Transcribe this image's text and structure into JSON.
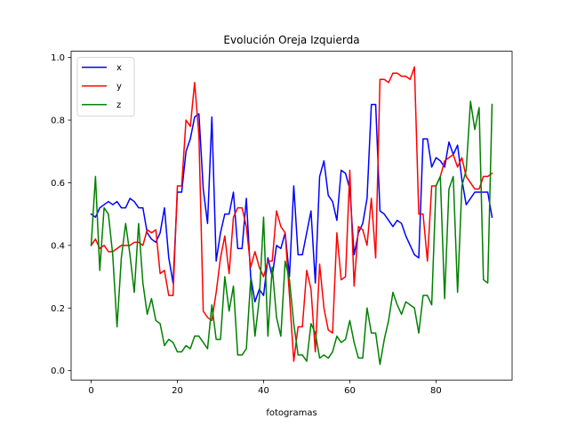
{
  "chart_data": {
    "type": "line",
    "title": "Evolución Oreja Izquierda",
    "xlabel": "fotogramas",
    "ylabel": "",
    "xlim": [
      -4.65,
      97.65
    ],
    "ylim": [
      -0.03,
      1.02
    ],
    "xticks": [
      0,
      20,
      40,
      60,
      80
    ],
    "yticks": [
      0.0,
      0.2,
      0.4,
      0.6,
      0.8,
      1.0
    ],
    "xtick_labels": [
      "0",
      "20",
      "40",
      "60",
      "80"
    ],
    "ytick_labels": [
      "0.0",
      "0.2",
      "0.4",
      "0.6",
      "0.8",
      "1.0"
    ],
    "grid": false,
    "legend_position": "top-left",
    "x": [
      0,
      1,
      2,
      3,
      4,
      5,
      6,
      7,
      8,
      9,
      10,
      11,
      12,
      13,
      14,
      15,
      16,
      17,
      18,
      19,
      20,
      21,
      22,
      23,
      24,
      25,
      26,
      27,
      28,
      29,
      30,
      31,
      32,
      33,
      34,
      35,
      36,
      37,
      38,
      39,
      40,
      41,
      42,
      43,
      44,
      45,
      46,
      47,
      48,
      49,
      50,
      51,
      52,
      53,
      54,
      55,
      56,
      57,
      58,
      59,
      60,
      61,
      62,
      63,
      64,
      65,
      66,
      67,
      68,
      69,
      70,
      71,
      72,
      73,
      74,
      75,
      76,
      77,
      78,
      79,
      80,
      81,
      82,
      83,
      84,
      85,
      86,
      87,
      88,
      89,
      90,
      91,
      92,
      93
    ],
    "series": [
      {
        "name": "x",
        "color": "#0000ff",
        "values": [
          0.5,
          0.49,
          0.52,
          0.53,
          0.54,
          0.53,
          0.54,
          0.52,
          0.52,
          0.55,
          0.54,
          0.52,
          0.52,
          0.44,
          0.42,
          0.41,
          0.44,
          0.52,
          0.36,
          0.28,
          0.57,
          0.57,
          0.7,
          0.74,
          0.81,
          0.82,
          0.58,
          0.47,
          0.81,
          0.35,
          0.44,
          0.5,
          0.5,
          0.57,
          0.39,
          0.39,
          0.55,
          0.3,
          0.22,
          0.26,
          0.24,
          0.36,
          0.3,
          0.4,
          0.39,
          0.44,
          0.3,
          0.59,
          0.37,
          0.37,
          0.44,
          0.51,
          0.28,
          0.62,
          0.67,
          0.56,
          0.54,
          0.48,
          0.64,
          0.63,
          0.58,
          0.37,
          0.44,
          0.47,
          0.55,
          0.85,
          0.85,
          0.51,
          0.5,
          0.48,
          0.46,
          0.48,
          0.47,
          0.43,
          0.4,
          0.37,
          0.36,
          0.74,
          0.74,
          0.65,
          0.68,
          0.67,
          0.65,
          0.73,
          0.69,
          0.72,
          0.61,
          0.53,
          0.55,
          0.57,
          0.57,
          0.57,
          0.57,
          0.49
        ]
      },
      {
        "name": "y",
        "color": "#ff0000",
        "values": [
          0.4,
          0.42,
          0.39,
          0.4,
          0.38,
          0.38,
          0.39,
          0.4,
          0.4,
          0.4,
          0.41,
          0.41,
          0.4,
          0.45,
          0.44,
          0.45,
          0.31,
          0.32,
          0.24,
          0.24,
          0.59,
          0.59,
          0.8,
          0.78,
          0.92,
          0.75,
          0.19,
          0.17,
          0.16,
          0.25,
          0.36,
          0.43,
          0.31,
          0.49,
          0.52,
          0.52,
          0.46,
          0.33,
          0.38,
          0.33,
          0.3,
          0.35,
          0.35,
          0.51,
          0.46,
          0.44,
          0.24,
          0.03,
          0.14,
          0.14,
          0.32,
          0.26,
          0.06,
          0.34,
          0.2,
          0.13,
          0.12,
          0.44,
          0.29,
          0.3,
          0.64,
          0.27,
          0.46,
          0.45,
          0.4,
          0.55,
          0.36,
          0.93,
          0.93,
          0.92,
          0.95,
          0.95,
          0.94,
          0.94,
          0.93,
          0.97,
          0.5,
          0.5,
          0.35,
          0.59,
          0.59,
          0.62,
          0.67,
          0.68,
          0.69,
          0.65,
          0.68,
          0.62,
          0.6,
          0.58,
          0.58,
          0.62,
          0.62,
          0.63
        ]
      },
      {
        "name": "z",
        "color": "#008000",
        "values": [
          0.4,
          0.62,
          0.32,
          0.52,
          0.5,
          0.37,
          0.14,
          0.36,
          0.47,
          0.37,
          0.25,
          0.47,
          0.28,
          0.18,
          0.23,
          0.16,
          0.15,
          0.08,
          0.1,
          0.09,
          0.06,
          0.06,
          0.08,
          0.07,
          0.11,
          0.11,
          0.09,
          0.07,
          0.21,
          0.1,
          0.1,
          0.3,
          0.19,
          0.27,
          0.05,
          0.05,
          0.07,
          0.29,
          0.11,
          0.23,
          0.49,
          0.11,
          0.33,
          0.17,
          0.11,
          0.35,
          0.29,
          0.15,
          0.05,
          0.05,
          0.03,
          0.15,
          0.12,
          0.04,
          0.05,
          0.04,
          0.06,
          0.11,
          0.09,
          0.1,
          0.16,
          0.09,
          0.04,
          0.04,
          0.2,
          0.12,
          0.12,
          0.02,
          0.1,
          0.16,
          0.25,
          0.21,
          0.18,
          0.22,
          0.21,
          0.2,
          0.12,
          0.24,
          0.24,
          0.21,
          0.59,
          0.62,
          0.23,
          0.58,
          0.62,
          0.25,
          0.59,
          0.64,
          0.86,
          0.77,
          0.84,
          0.29,
          0.28,
          0.85
        ]
      }
    ]
  }
}
